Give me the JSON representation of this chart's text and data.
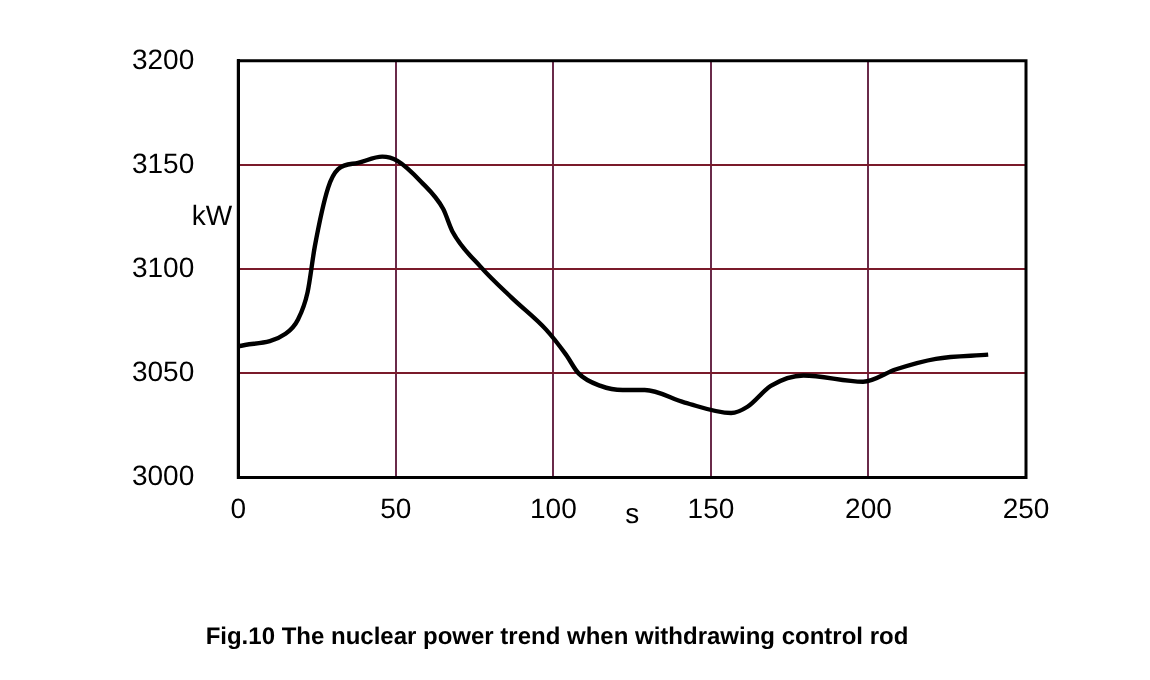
{
  "chart_data": {
    "type": "line",
    "title": "Fig.10 The nuclear power trend when withdrawing control rod",
    "xlabel": "s",
    "ylabel": "kW",
    "x": [
      0,
      15,
      19,
      22,
      24.3,
      28.5,
      31.7,
      38,
      45.7,
      50.5,
      58,
      65,
      68,
      77,
      87,
      97.7,
      104,
      108,
      115,
      122,
      129,
      141.7,
      156.4,
      161.6,
      169,
      179.4,
      198.3,
      208.8,
      221.4,
      238
    ],
    "series": [
      {
        "color": "#000000",
        "values": [
          3063,
          3069,
          3076,
          3089,
          3111,
          3139,
          3148,
          3151,
          3154,
          3152,
          3142,
          3129,
          3118,
          3101,
          3086,
          3071,
          3059,
          3050,
          3044,
          3042,
          3042,
          3036,
          3031,
          3034,
          3044,
          3049,
          3046,
          3052,
          3057,
          3059
        ]
      }
    ],
    "xlim": [
      0,
      250
    ],
    "xticks": [
      0,
      50,
      100,
      150,
      200,
      250
    ],
    "ylim": [
      3000,
      3200
    ],
    "yticks": [
      3000,
      3050,
      3100,
      3150,
      3200
    ],
    "grid": true,
    "legend": false,
    "marker": "none",
    "line_style": "solid"
  }
}
